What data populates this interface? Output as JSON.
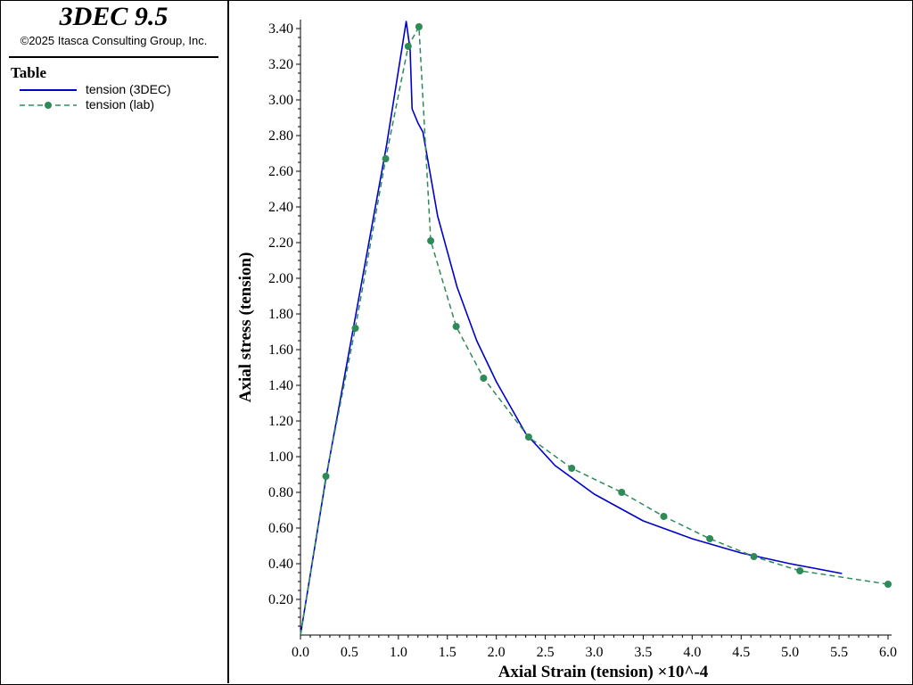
{
  "header": {
    "app_title": "3DEC 9.5",
    "copyright": "©2025 Itasca Consulting Group, Inc."
  },
  "legend": {
    "title": "Table",
    "items": [
      {
        "label": "tension (3DEC)",
        "color": "#0000cc",
        "style": "solid"
      },
      {
        "label": "tension (lab)",
        "color": "#2e8b57",
        "style": "dashed-with-dots"
      }
    ]
  },
  "chart_data": {
    "type": "line",
    "xlabel": "Axial Strain (tension) ×10^-4",
    "ylabel": "Axial stress (tension)",
    "xlim": [
      0,
      6.0
    ],
    "ylim": [
      0,
      3.45
    ],
    "x_ticks": [
      "0.0",
      "0.5",
      "1.0",
      "1.5",
      "2.0",
      "2.5",
      "3.0",
      "3.5",
      "4.0",
      "4.5",
      "5.0",
      "5.5",
      "6.0"
    ],
    "y_ticks": [
      "0.20",
      "0.40",
      "0.60",
      "0.80",
      "1.00",
      "1.20",
      "1.40",
      "1.60",
      "1.80",
      "2.00",
      "2.20",
      "2.40",
      "2.60",
      "2.80",
      "3.00",
      "3.20",
      "3.40"
    ],
    "grid": false,
    "legend_position": "sidebar",
    "series": [
      {
        "name": "tension (3DEC)",
        "color": "#0000cc",
        "points": [
          [
            0,
            0
          ],
          [
            0.26,
            0.88
          ],
          [
            0.55,
            1.75
          ],
          [
            0.88,
            2.75
          ],
          [
            1.08,
            3.44
          ],
          [
            1.12,
            3.28
          ],
          [
            1.14,
            2.95
          ],
          [
            1.2,
            2.87
          ],
          [
            1.25,
            2.82
          ],
          [
            1.4,
            2.35
          ],
          [
            1.6,
            1.95
          ],
          [
            1.8,
            1.65
          ],
          [
            2.0,
            1.42
          ],
          [
            2.3,
            1.13
          ],
          [
            2.6,
            0.95
          ],
          [
            3.0,
            0.79
          ],
          [
            3.5,
            0.64
          ],
          [
            4.0,
            0.54
          ],
          [
            4.5,
            0.46
          ],
          [
            5.0,
            0.4
          ],
          [
            5.53,
            0.345
          ]
        ]
      },
      {
        "name": "tension (lab)",
        "color": "#2e8b57",
        "points": [
          [
            0,
            0
          ],
          [
            0.26,
            0.89
          ],
          [
            0.56,
            1.72
          ],
          [
            0.87,
            2.67
          ],
          [
            1.1,
            3.3
          ],
          [
            1.21,
            3.41
          ],
          [
            1.33,
            2.21
          ],
          [
            1.59,
            1.73
          ],
          [
            1.87,
            1.44
          ],
          [
            2.33,
            1.11
          ],
          [
            2.77,
            0.935
          ],
          [
            3.28,
            0.8
          ],
          [
            3.71,
            0.665
          ],
          [
            4.18,
            0.54
          ],
          [
            4.63,
            0.44
          ],
          [
            5.1,
            0.36
          ],
          [
            6.0,
            0.285
          ]
        ]
      }
    ]
  }
}
